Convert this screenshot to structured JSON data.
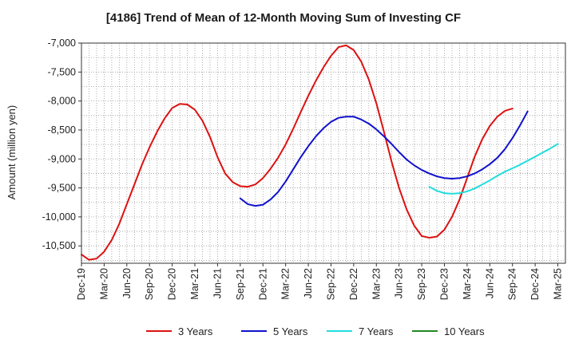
{
  "chart_data": {
    "type": "line",
    "title": "[4186]  Trend of Mean of 12-Month Moving Sum of Investing CF",
    "xlabel": "",
    "ylabel": "Amount (million yen)",
    "ylim": [
      -10800,
      -7000
    ],
    "yticks": [
      -7000,
      -7500,
      -8000,
      -8500,
      -9000,
      -9500,
      -10000,
      -10500
    ],
    "ytick_labels": [
      "-7,000",
      "-7,500",
      "-8,000",
      "-8,500",
      "-9,000",
      "-9,500",
      "-10,000",
      "-10,500"
    ],
    "x_start": "Dec-19",
    "x_count": 64,
    "xtick_labels": [
      "Dec-19",
      "Mar-20",
      "Jun-20",
      "Sep-20",
      "Dec-20",
      "Mar-21",
      "Jun-21",
      "Sep-21",
      "Dec-21",
      "Mar-22",
      "Jun-22",
      "Sep-22",
      "Dec-22",
      "Mar-23",
      "Jun-23",
      "Sep-23",
      "Dec-23",
      "Mar-24",
      "Jun-24",
      "Sep-24",
      "Dec-24",
      "Mar-25"
    ],
    "grid": true,
    "legend_position": "bottom",
    "series": [
      {
        "name": "3 Years",
        "color": "#dd1111",
        "start_index": 0,
        "values": [
          -10650,
          -10740,
          -10720,
          -10600,
          -10400,
          -10120,
          -9780,
          -9440,
          -9100,
          -8800,
          -8530,
          -8300,
          -8120,
          -8050,
          -8060,
          -8150,
          -8340,
          -8620,
          -8970,
          -9250,
          -9400,
          -9470,
          -9480,
          -9440,
          -9330,
          -9170,
          -8980,
          -8750,
          -8480,
          -8190,
          -7910,
          -7650,
          -7420,
          -7220,
          -7070,
          -7040,
          -7120,
          -7320,
          -7630,
          -8040,
          -8530,
          -9040,
          -9500,
          -9870,
          -10150,
          -10330,
          -10360,
          -10340,
          -10220,
          -10000,
          -9700,
          -9330,
          -8960,
          -8660,
          -8430,
          -8270,
          -8170,
          -8130
        ]
      },
      {
        "name": "5 Years",
        "color": "#1111cc",
        "start_index": 21,
        "values": [
          -9680,
          -9780,
          -9810,
          -9790,
          -9700,
          -9570,
          -9390,
          -9180,
          -8970,
          -8780,
          -8610,
          -8470,
          -8360,
          -8290,
          -8270,
          -8270,
          -8320,
          -8390,
          -8490,
          -8610,
          -8740,
          -8880,
          -9010,
          -9110,
          -9190,
          -9250,
          -9300,
          -9330,
          -9340,
          -9330,
          -9300,
          -9250,
          -9180,
          -9090,
          -8980,
          -8830,
          -8640,
          -8420,
          -8180
        ]
      },
      {
        "name": "7 Years",
        "color": "#22dddd",
        "start_index": 46,
        "values": [
          -9480,
          -9550,
          -9590,
          -9600,
          -9590,
          -9560,
          -9510,
          -9440,
          -9370,
          -9290,
          -9220,
          -9160,
          -9100,
          -9030,
          -8960,
          -8890,
          -8820,
          -8740
        ]
      },
      {
        "name": "10 Years",
        "color": "#228822",
        "start_index": 0,
        "values": []
      }
    ]
  }
}
